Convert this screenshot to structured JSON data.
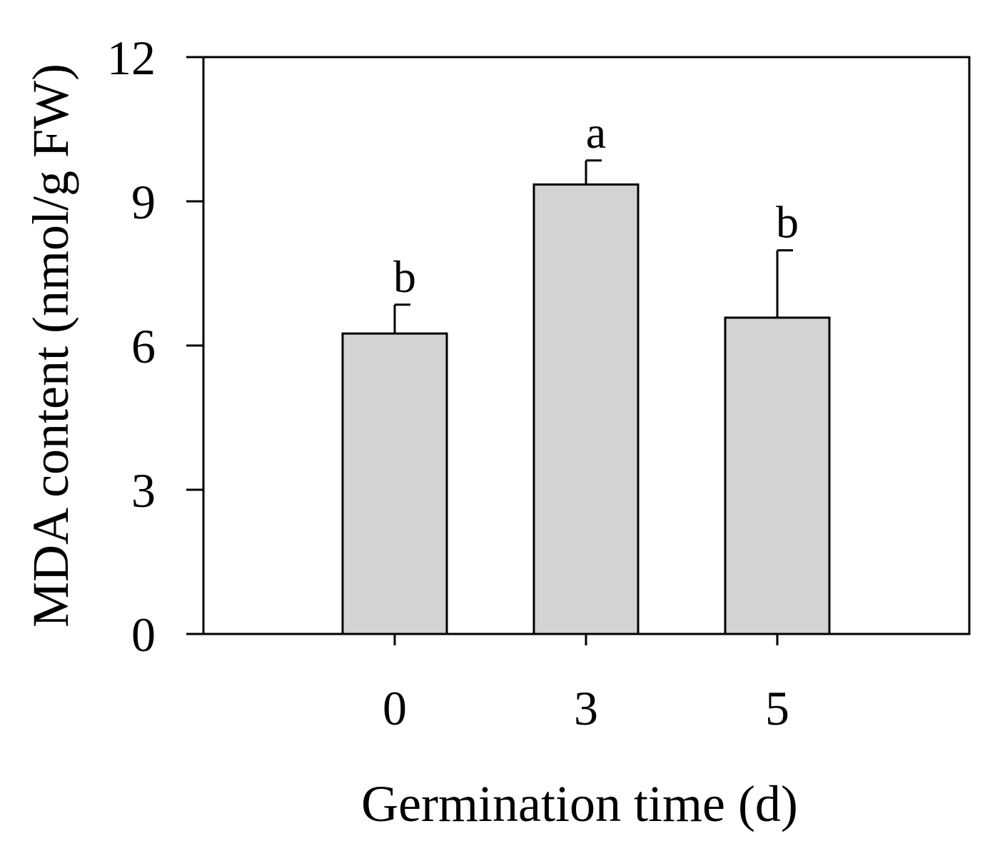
{
  "chart_data": {
    "type": "bar",
    "categories": [
      "0",
      "3",
      "5"
    ],
    "values": [
      6.25,
      9.35,
      6.58
    ],
    "errors": [
      0.6,
      0.5,
      1.4
    ],
    "significance": [
      "b",
      "a",
      "b"
    ],
    "xlabel": "Germination time (d)",
    "ylabel": "MDA content (nmol/g FW)",
    "ylim": [
      0,
      12
    ],
    "yticks": [
      0,
      3,
      6,
      9,
      12
    ],
    "grid": false,
    "bar_color": "#d3d3d3"
  }
}
